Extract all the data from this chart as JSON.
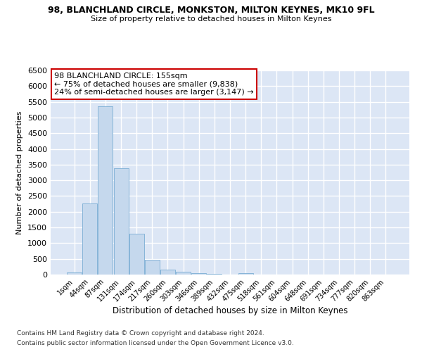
{
  "title": "98, BLANCHLAND CIRCLE, MONKSTON, MILTON KEYNES, MK10 9FL",
  "subtitle": "Size of property relative to detached houses in Milton Keynes",
  "xlabel": "Distribution of detached houses by size in Milton Keynes",
  "ylabel": "Number of detached properties",
  "footnote1": "Contains HM Land Registry data © Crown copyright and database right 2024.",
  "footnote2": "Contains public sector information licensed under the Open Government Licence v3.0.",
  "bar_color": "#c5d8ed",
  "bar_edge_color": "#7aadd4",
  "background_color": "#dce6f5",
  "grid_color": "white",
  "annotation_box_color": "#cc0000",
  "annotation_text": "98 BLANCHLAND CIRCLE: 155sqm\n← 75% of detached houses are smaller (9,838)\n24% of semi-detached houses are larger (3,147) →",
  "categories": [
    "1sqm",
    "44sqm",
    "87sqm",
    "131sqm",
    "174sqm",
    "217sqm",
    "260sqm",
    "303sqm",
    "346sqm",
    "389sqm",
    "432sqm",
    "475sqm",
    "518sqm",
    "561sqm",
    "604sqm",
    "648sqm",
    "691sqm",
    "734sqm",
    "777sqm",
    "820sqm",
    "863sqm"
  ],
  "values": [
    75,
    2270,
    5350,
    3380,
    1290,
    480,
    165,
    80,
    50,
    25,
    5,
    50,
    0,
    0,
    0,
    0,
    0,
    0,
    0,
    0,
    0
  ],
  "ylim": [
    0,
    6500
  ],
  "yticks": [
    0,
    500,
    1000,
    1500,
    2000,
    2500,
    3000,
    3500,
    4000,
    4500,
    5000,
    5500,
    6000,
    6500
  ]
}
